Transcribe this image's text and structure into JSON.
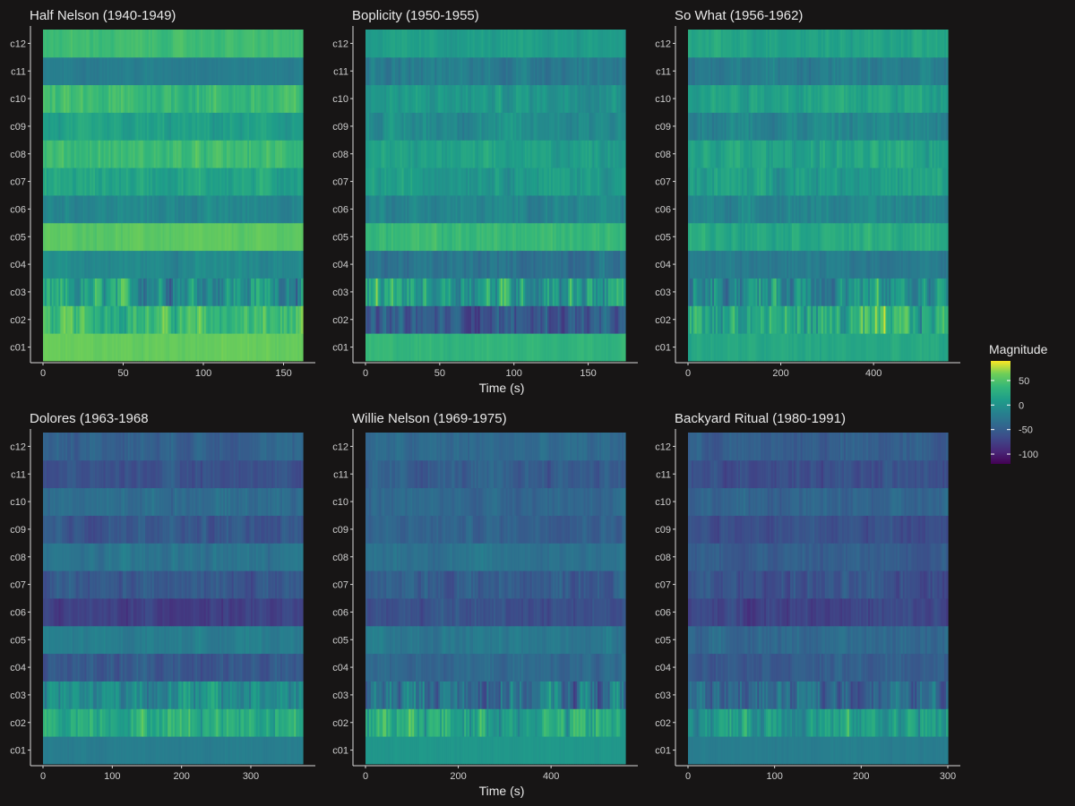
{
  "chart_data": {
    "type": "heatmap",
    "colorscale": "viridis",
    "color_range": [
      -120,
      90
    ],
    "legend": {
      "title": "Magnitude",
      "ticks": [
        50,
        0,
        -50,
        -100
      ],
      "tick_labels": [
        "50",
        "0",
        "-50",
        "-100"
      ],
      "placement": "right"
    },
    "xlabel": "Time (s)",
    "row_labels": [
      "c01",
      "c02",
      "c03",
      "c04",
      "c05",
      "c06",
      "c07",
      "c08",
      "c09",
      "c10",
      "c11",
      "c12"
    ],
    "panels": [
      {
        "title": "Half Nelson (1940-1949)",
        "xlim": [
          0,
          162
        ],
        "x_ticks": [
          0,
          50,
          100,
          150
        ],
        "x_tick_labels": [
          "0",
          "50",
          "100",
          "150"
        ],
        "row_mean": [
          60,
          38,
          5,
          -8,
          55,
          -10,
          18,
          40,
          10,
          38,
          -18,
          42
        ],
        "row_var": [
          5,
          25,
          40,
          10,
          5,
          10,
          14,
          12,
          12,
          15,
          6,
          6
        ],
        "show_xlabel": false
      },
      {
        "title": "Boplicity (1950-1955)",
        "xlim": [
          0,
          175
        ],
        "x_ticks": [
          0,
          50,
          100,
          150
        ],
        "x_tick_labels": [
          "0",
          "50",
          "100",
          "150"
        ],
        "row_mean": [
          35,
          -55,
          15,
          -30,
          38,
          -12,
          10,
          12,
          -5,
          5,
          -20,
          10
        ],
        "row_var": [
          6,
          25,
          45,
          14,
          10,
          12,
          14,
          12,
          15,
          15,
          14,
          8
        ],
        "show_xlabel": true
      },
      {
        "title": "So What (1956-1962)",
        "xlim": [
          0,
          560
        ],
        "x_ticks": [
          0,
          200,
          400
        ],
        "x_tick_labels": [
          "0",
          "200",
          "400"
        ],
        "row_mean": [
          20,
          20,
          0,
          -22,
          25,
          -12,
          12,
          16,
          -10,
          18,
          -20,
          18
        ],
        "row_var": [
          8,
          40,
          40,
          10,
          12,
          12,
          16,
          16,
          15,
          14,
          12,
          10
        ],
        "show_xlabel": false
      },
      {
        "title": "Dolores (1963-1968",
        "xlim": [
          0,
          375
        ],
        "x_ticks": [
          0,
          100,
          200,
          300
        ],
        "x_tick_labels": [
          "0",
          "100",
          "200",
          "300"
        ],
        "row_mean": [
          -20,
          30,
          -5,
          -55,
          -20,
          -75,
          -55,
          -30,
          -55,
          -35,
          -60,
          -45
        ],
        "row_var": [
          4,
          25,
          30,
          14,
          8,
          10,
          12,
          10,
          12,
          10,
          10,
          10
        ],
        "show_xlabel": false
      },
      {
        "title": "Willie Nelson (1969-1975)",
        "xlim": [
          0,
          560
        ],
        "x_ticks": [
          0,
          200,
          400
        ],
        "x_tick_labels": [
          "0",
          "200",
          "400"
        ],
        "row_mean": [
          5,
          20,
          -30,
          -40,
          -25,
          -60,
          -50,
          -30,
          -45,
          -40,
          -50,
          -40
        ],
        "row_var": [
          4,
          35,
          40,
          10,
          10,
          12,
          14,
          10,
          10,
          10,
          12,
          10
        ],
        "show_xlabel": true
      },
      {
        "title": "Backyard Ritual (1980-1991)",
        "xlim": [
          0,
          300
        ],
        "x_ticks": [
          0,
          100,
          200,
          300
        ],
        "x_tick_labels": [
          "0",
          "100",
          "200",
          "300"
        ],
        "row_mean": [
          -20,
          10,
          -40,
          -50,
          -40,
          -70,
          -60,
          -50,
          -60,
          -45,
          -60,
          -50
        ],
        "row_var": [
          4,
          30,
          30,
          10,
          10,
          12,
          14,
          10,
          10,
          10,
          12,
          10
        ],
        "show_xlabel": false
      }
    ]
  }
}
